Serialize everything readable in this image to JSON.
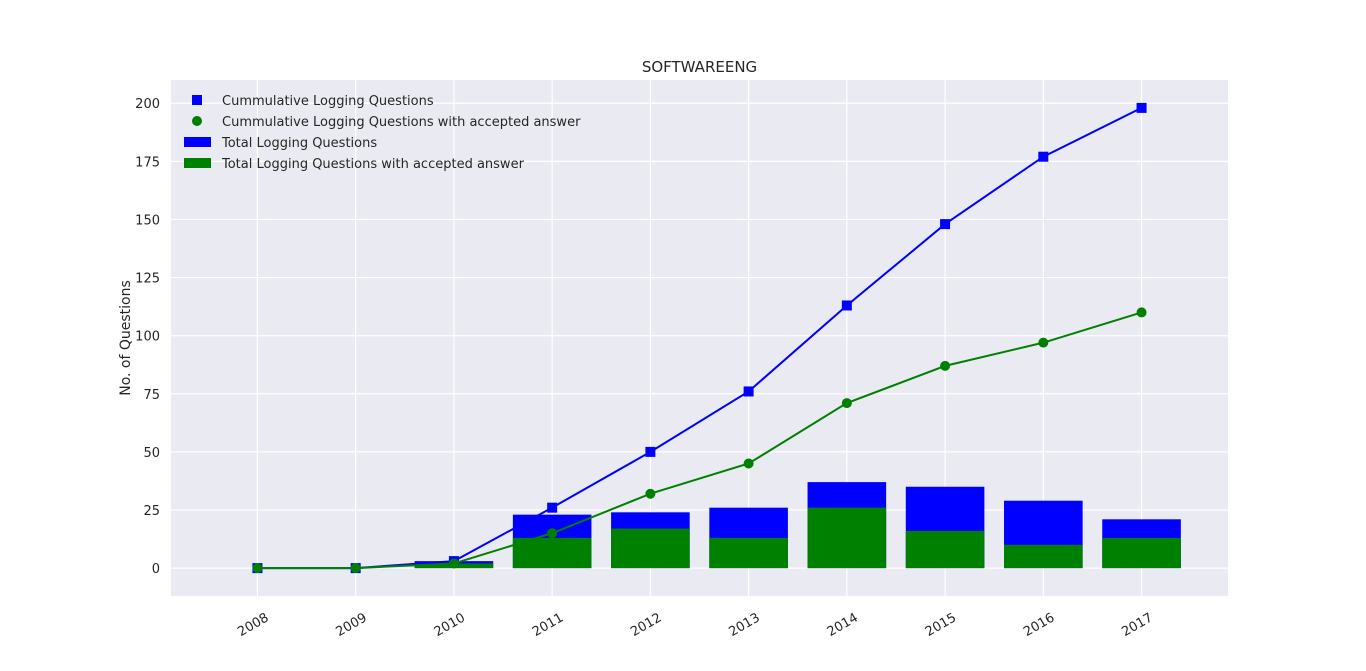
{
  "chart_data": {
    "type": "bar",
    "title": "SOFTWAREENG",
    "xlabel": "",
    "ylabel": "No. of Questions",
    "categories": [
      "2008",
      "2009",
      "2010",
      "2011",
      "2012",
      "2013",
      "2014",
      "2015",
      "2016",
      "2017"
    ],
    "ylim": [
      -12,
      210
    ],
    "yticks": [
      0,
      25,
      50,
      75,
      100,
      125,
      150,
      175,
      200
    ],
    "xlim": [
      2007.12,
      2017.88
    ],
    "grid": true,
    "legend_position": "top-left",
    "series": [
      {
        "name": "Total Logging Questions",
        "kind": "bar",
        "color": "#0000ff",
        "values": [
          0,
          0,
          3,
          23,
          24,
          26,
          37,
          35,
          29,
          21
        ]
      },
      {
        "name": "Total Logging Questions with accepted answer",
        "kind": "bar",
        "color": "#008000",
        "values": [
          0,
          0,
          2,
          13,
          17,
          13,
          26,
          16,
          10,
          13
        ]
      },
      {
        "name": "Cummulative Logging Questions",
        "kind": "line",
        "marker": "square",
        "color": "#0000ff",
        "values": [
          0,
          0,
          3,
          26,
          50,
          76,
          113,
          148,
          177,
          198
        ]
      },
      {
        "name": "Cummulative Logging Questions with accepted answer",
        "kind": "line",
        "marker": "circle",
        "color": "#008000",
        "values": [
          0,
          0,
          2,
          15,
          32,
          45,
          71,
          87,
          97,
          110
        ]
      }
    ],
    "legend_order": [
      "Cummulative Logging Questions",
      "Cummulative Logging Questions with accepted answer",
      "Total Logging Questions",
      "Total Logging Questions with accepted answer"
    ]
  }
}
